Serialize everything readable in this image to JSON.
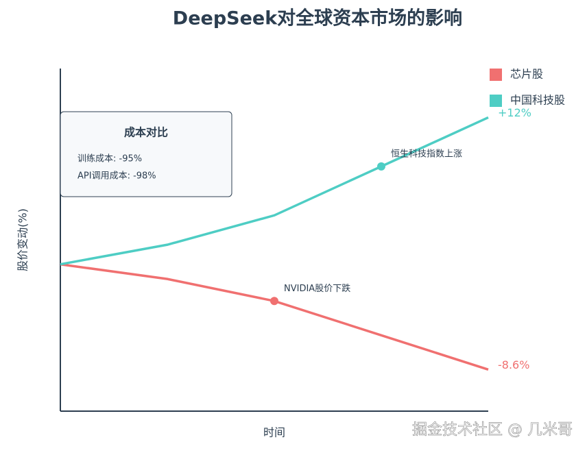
{
  "chart_data": {
    "type": "line",
    "title": "DeepSeek对全球资本市场的影响",
    "x_label": "时间",
    "y_label": "股价变动(%)",
    "categories": [
      null,
      null,
      null,
      null,
      null
    ],
    "series": [
      {
        "name": "芯片股",
        "color": "#f07070",
        "values": [
          0,
          -1.2,
          -3,
          -5.8,
          -8.6
        ],
        "value_labels": [
          null,
          null,
          null,
          null,
          "-8.6%"
        ]
      },
      {
        "name": "中国科技股",
        "color": "#4ecdc4",
        "values": [
          0,
          1.6,
          4,
          8,
          12
        ],
        "value_labels": [
          null,
          null,
          null,
          null,
          "+12%"
        ]
      }
    ],
    "ylim": [
      -12,
      16
    ],
    "annotations": [
      "NVIDIA股价下跌",
      "恒生科技指数上涨"
    ],
    "legend": "top-right",
    "cost_box": {
      "title": "成本对比",
      "lines": [
        "训练成本: -95%",
        "API调用成本: -98%"
      ]
    },
    "watermark": "掘金技术社区 @ 几米哥"
  }
}
